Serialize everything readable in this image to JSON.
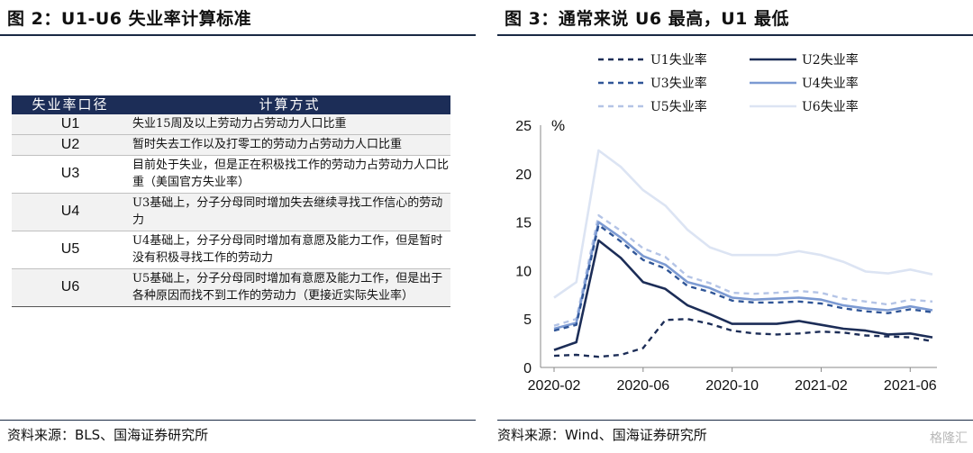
{
  "left": {
    "title": "图 2：U1-U6 失业率计算标准",
    "table": {
      "headers": [
        "失业率口径",
        "计算方式"
      ],
      "rows": [
        {
          "code": "U1",
          "desc": "失业15周及以上劳动力占劳动力人口比重"
        },
        {
          "code": "U2",
          "desc": "暂时失去工作以及打零工的劳动力占劳动力人口比重"
        },
        {
          "code": "U3",
          "desc": "目前处于失业，但是正在积极找工作的劳动力占劳动力人口比重（美国官方失业率）"
        },
        {
          "code": "U4",
          "desc": "U3基础上，分子分母同时增加失去继续寻找工作信心的劳动力"
        },
        {
          "code": "U5",
          "desc": "U4基础上，分子分母同时增加有意愿及能力工作，但是暂时没有积极寻找工作的劳动力"
        },
        {
          "code": "U6",
          "desc": "U5基础上，分子分母同时增加有意愿及能力工作，但是出于各种原因而找不到工作的劳动力（更接近实际失业率）"
        }
      ]
    },
    "source": "资料来源：BLS、国海证券研究所"
  },
  "right": {
    "title": "图 3：通常来说 U6 最高，U1 最低",
    "source": "资料来源：Wind、国海证券研究所",
    "watermark": "格隆汇"
  },
  "chart_data": {
    "type": "line",
    "unit_label": "%",
    "x": [
      "2020-02",
      "2020-03",
      "2020-04",
      "2020-05",
      "2020-06",
      "2020-07",
      "2020-08",
      "2020-09",
      "2020-10",
      "2020-11",
      "2020-12",
      "2021-01",
      "2021-02",
      "2021-03",
      "2021-04",
      "2021-05",
      "2021-06",
      "2021-07"
    ],
    "x_tick_labels": [
      "2020-02",
      "2020-06",
      "2020-10",
      "2021-02",
      "2021-06"
    ],
    "ylim": [
      0,
      25
    ],
    "y_ticks": [
      0,
      5,
      10,
      15,
      20,
      25
    ],
    "legend_position": "top",
    "series": [
      {
        "name": "U1失业率",
        "color": "#1c2d57",
        "dash": "6,5",
        "width": 2.4,
        "values": [
          1.2,
          1.3,
          1.1,
          1.3,
          2.0,
          4.9,
          5.0,
          4.5,
          3.8,
          3.5,
          3.4,
          3.5,
          3.7,
          3.6,
          3.3,
          3.2,
          3.1,
          2.7
        ]
      },
      {
        "name": "U2失业率",
        "color": "#1c2d57",
        "dash": "",
        "width": 2.6,
        "values": [
          1.8,
          2.6,
          13.1,
          11.3,
          8.8,
          8.1,
          6.4,
          5.5,
          4.5,
          4.5,
          4.5,
          4.8,
          4.4,
          4.0,
          3.8,
          3.4,
          3.5,
          3.1
        ]
      },
      {
        "name": "U3失业率",
        "color": "#2f5597",
        "dash": "6,5",
        "width": 2.4,
        "values": [
          3.8,
          4.4,
          14.7,
          13.0,
          11.1,
          10.2,
          8.4,
          7.8,
          6.9,
          6.7,
          6.7,
          6.8,
          6.6,
          6.1,
          5.8,
          5.6,
          6.0,
          5.7
        ]
      },
      {
        "name": "U4失业率",
        "color": "#7c9ad2",
        "dash": "",
        "width": 2.6,
        "values": [
          4.0,
          4.6,
          15.0,
          13.4,
          11.5,
          10.6,
          8.8,
          8.2,
          7.2,
          7.0,
          7.1,
          7.2,
          7.0,
          6.4,
          6.1,
          5.9,
          6.3,
          5.9
        ]
      },
      {
        "name": "U5失业率",
        "color": "#b4c4e6",
        "dash": "6,5",
        "width": 2.4,
        "values": [
          4.3,
          5.0,
          15.7,
          14.1,
          12.3,
          11.4,
          9.4,
          8.7,
          7.7,
          7.6,
          7.7,
          7.9,
          7.7,
          7.1,
          6.8,
          6.5,
          7.0,
          6.8
        ]
      },
      {
        "name": "U6失业率",
        "color": "#dce4f3",
        "dash": "",
        "width": 2.6,
        "values": [
          7.2,
          8.8,
          22.4,
          20.7,
          18.3,
          16.7,
          14.2,
          12.4,
          11.6,
          11.6,
          11.6,
          12.0,
          11.6,
          10.9,
          9.9,
          9.7,
          10.1,
          9.6
        ]
      }
    ]
  }
}
